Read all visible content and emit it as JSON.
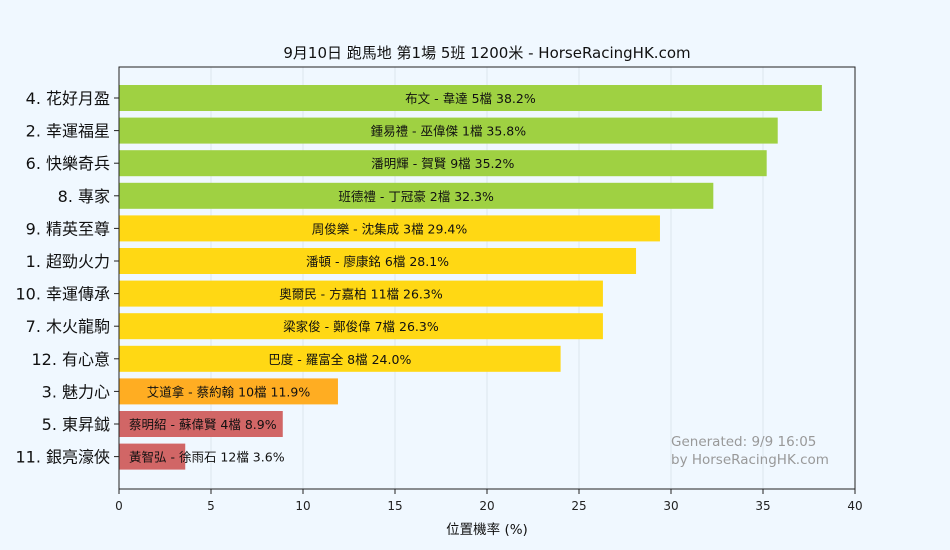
{
  "chart_data": {
    "type": "bar",
    "orientation": "horizontal",
    "title": "9月10日  跑馬地  第1場  5班  1200米 - HorseRacingHK.com",
    "xlabel": "位置機率 (%)",
    "ylabel": "",
    "xlim": [
      0,
      40
    ],
    "xticks": [
      0,
      5,
      10,
      15,
      20,
      25,
      30,
      35,
      40
    ],
    "grid": true,
    "annotation": [
      "Generated: 9/9 16:05",
      "by HorseRacingHK.com"
    ],
    "bars": [
      {
        "category": "4. 花好月盈",
        "label": "布文 - 韋達 5檔  38.2%",
        "value": 38.2,
        "color": "#9fd142"
      },
      {
        "category": "2. 幸運福星",
        "label": "鍾易禮 - 巫偉傑 1檔  35.8%",
        "value": 35.8,
        "color": "#9fd142"
      },
      {
        "category": "6. 快樂奇兵",
        "label": "潘明輝 - 賀賢 9檔  35.2%",
        "value": 35.2,
        "color": "#9fd142"
      },
      {
        "category": "8. 專家",
        "label": "班德禮 - 丁冠豪 2檔  32.3%",
        "value": 32.3,
        "color": "#9fd142"
      },
      {
        "category": "9. 精英至尊",
        "label": "周俊樂 - 沈集成 3檔  29.4%",
        "value": 29.4,
        "color": "#ffd814"
      },
      {
        "category": "1. 超勁火力",
        "label": "潘頓 - 廖康銘 6檔  28.1%",
        "value": 28.1,
        "color": "#ffd814"
      },
      {
        "category": "10. 幸運傳承",
        "label": "奧爾民 - 方嘉柏 11檔  26.3%",
        "value": 26.3,
        "color": "#ffd814"
      },
      {
        "category": "7. 木火龍駒",
        "label": "梁家俊 - 鄭俊偉 7檔  26.3%",
        "value": 26.3,
        "color": "#ffd814"
      },
      {
        "category": "12. 有心意",
        "label": "巴度 - 羅富全 8檔  24.0%",
        "value": 24.0,
        "color": "#ffd814"
      },
      {
        "category": "3. 魅力心",
        "label": "艾道拿 - 蔡約翰 10檔  11.9%",
        "value": 11.9,
        "color": "#ffad22"
      },
      {
        "category": "5. 東昇鉞",
        "label": "蔡明紹 - 蘇偉賢 4檔  8.9%",
        "value": 8.9,
        "color": "#d16666"
      },
      {
        "category": "11. 銀亮濠俠",
        "label": "黃智弘 - 徐雨石 12檔  3.6%",
        "value": 3.6,
        "color": "#d16666"
      }
    ]
  }
}
